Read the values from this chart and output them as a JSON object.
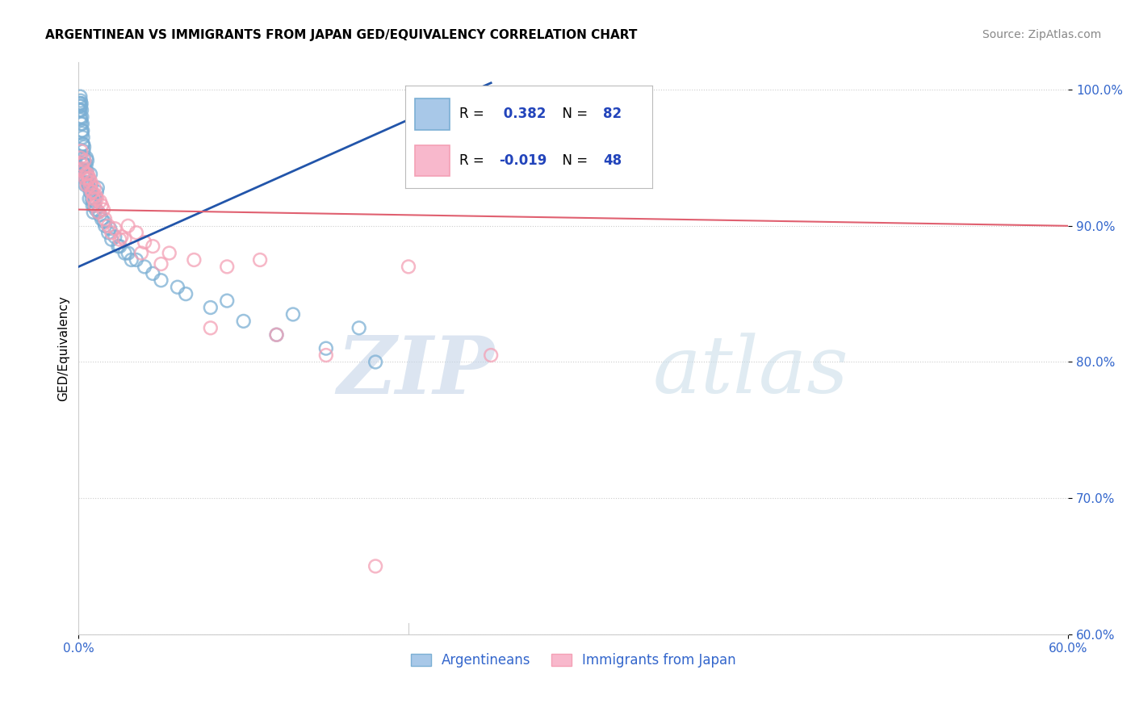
{
  "title": "ARGENTINEAN VS IMMIGRANTS FROM JAPAN GED/EQUIVALENCY CORRELATION CHART",
  "source": "Source: ZipAtlas.com",
  "ylabel_label": "GED/Equivalency",
  "blue_R": 0.382,
  "blue_N": 82,
  "pink_R": -0.019,
  "pink_N": 48,
  "blue_scatter_x": [
    0.05,
    0.08,
    0.1,
    0.12,
    0.14,
    0.16,
    0.18,
    0.2,
    0.22,
    0.24,
    0.26,
    0.28,
    0.3,
    0.32,
    0.34,
    0.36,
    0.38,
    0.4,
    0.42,
    0.44,
    0.46,
    0.48,
    0.5,
    0.55,
    0.6,
    0.65,
    0.7,
    0.75,
    0.8,
    0.85,
    0.9,
    0.95,
    1.0,
    1.1,
    1.2,
    1.4,
    1.6,
    1.8,
    2.0,
    2.5,
    3.0,
    3.5,
    4.0,
    5.0,
    6.5,
    8.0,
    10.0,
    12.0,
    15.0,
    18.0,
    0.06,
    0.09,
    0.11,
    0.15,
    0.19,
    0.25,
    0.35,
    0.45,
    0.55,
    0.65,
    0.78,
    0.88,
    1.05,
    1.3,
    1.55,
    1.9,
    2.2,
    2.8,
    3.2,
    4.5,
    6.0,
    9.0,
    13.0,
    17.0,
    0.07,
    0.13,
    0.21,
    0.33,
    0.52,
    0.72,
    1.15,
    2.4
  ],
  "blue_scatter_y": [
    98.5,
    99.0,
    99.5,
    99.2,
    98.8,
    99.0,
    98.5,
    98.0,
    97.5,
    97.0,
    96.5,
    96.0,
    95.5,
    95.0,
    94.5,
    94.0,
    93.5,
    93.0,
    93.5,
    94.0,
    94.5,
    95.0,
    94.0,
    93.0,
    93.5,
    92.0,
    92.5,
    93.0,
    92.0,
    91.5,
    91.0,
    91.5,
    92.0,
    92.5,
    91.0,
    90.5,
    90.0,
    89.5,
    89.0,
    88.5,
    88.0,
    87.5,
    87.0,
    86.0,
    85.0,
    84.0,
    83.0,
    82.0,
    81.0,
    80.0,
    99.0,
    98.5,
    98.0,
    97.5,
    97.0,
    96.0,
    94.5,
    93.8,
    93.2,
    92.8,
    92.5,
    91.8,
    91.2,
    90.8,
    90.3,
    89.8,
    89.2,
    88.0,
    87.5,
    86.5,
    85.5,
    84.5,
    83.5,
    82.5,
    98.8,
    97.8,
    96.8,
    95.8,
    94.8,
    93.8,
    92.8,
    88.5
  ],
  "pink_scatter_x": [
    0.1,
    0.2,
    0.3,
    0.4,
    0.5,
    0.6,
    0.7,
    0.8,
    0.9,
    1.0,
    1.2,
    1.4,
    1.6,
    1.8,
    2.0,
    2.5,
    3.0,
    3.5,
    4.5,
    5.5,
    7.0,
    9.0,
    11.0,
    15.0,
    20.0,
    25.0,
    0.15,
    0.35,
    0.55,
    0.75,
    0.95,
    1.1,
    1.3,
    1.5,
    2.2,
    2.8,
    3.8,
    5.0,
    8.0,
    12.0,
    18.0,
    0.25,
    0.45,
    0.65,
    0.85,
    1.05,
    2.6,
    4.0
  ],
  "pink_scatter_y": [
    95.0,
    94.5,
    94.0,
    93.5,
    93.0,
    93.5,
    93.0,
    92.5,
    92.0,
    91.5,
    91.0,
    91.5,
    90.5,
    90.0,
    89.5,
    89.0,
    90.0,
    89.5,
    88.5,
    88.0,
    87.5,
    87.0,
    87.5,
    80.5,
    87.0,
    80.5,
    95.5,
    94.8,
    93.8,
    93.2,
    92.8,
    92.0,
    91.8,
    91.2,
    89.8,
    89.0,
    88.0,
    87.2,
    82.5,
    82.0,
    65.0,
    94.2,
    93.8,
    93.5,
    92.5,
    92.2,
    89.2,
    88.8
  ],
  "blue_line_x": [
    0.0,
    25.0
  ],
  "blue_line_y": [
    87.0,
    100.5
  ],
  "pink_line_x": [
    0.0,
    60.0
  ],
  "pink_line_y": [
    91.2,
    90.0
  ],
  "xmin": 0.0,
  "xmax": 60.0,
  "ymin": 60.0,
  "ymax": 102.0,
  "yticks": [
    60.0,
    70.0,
    80.0,
    90.0,
    100.0
  ],
  "ytick_labels": [
    "60.0%",
    "70.0%",
    "80.0%",
    "90.0%",
    "100.0%"
  ],
  "xtick_left_label": "0.0%",
  "xtick_right_label": "60.0%",
  "grid_color": "#cccccc",
  "blue_dot_color": "#7bafd4",
  "pink_dot_color": "#f4a0b5",
  "blue_line_color": "#2255aa",
  "pink_line_color": "#e06070",
  "watermark_zip": "ZIP",
  "watermark_atlas": "atlas",
  "background_color": "#ffffff",
  "legend_blue_label": "Argentineans",
  "legend_pink_label": "Immigrants from Japan"
}
